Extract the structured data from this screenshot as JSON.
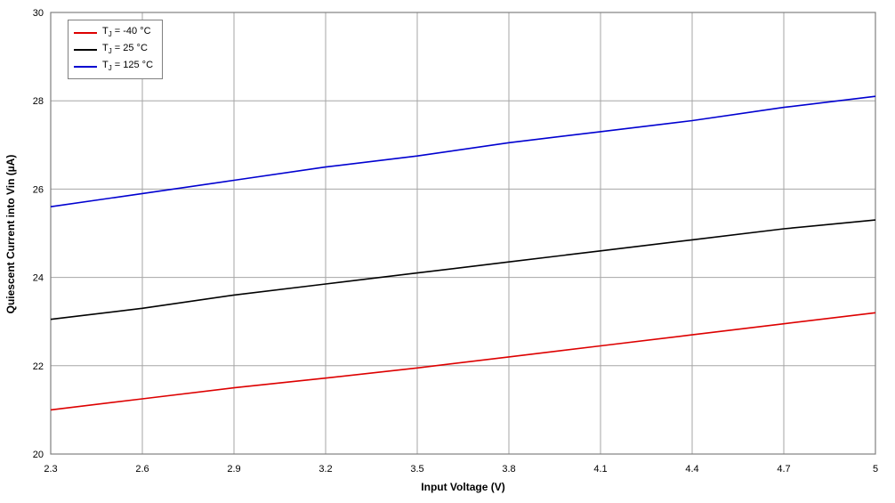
{
  "chart_data": {
    "type": "line",
    "title": "",
    "xlabel": "Input Voltage (V)",
    "ylabel": "Quiescent Current into Vin (µA)",
    "xlim": [
      2.3,
      5
    ],
    "ylim": [
      20,
      30
    ],
    "grid": true,
    "legend_position": "top-left",
    "grid_color": "#a6a6a6",
    "border_color": "#808080",
    "x_ticks": [
      2.3,
      2.6,
      2.9,
      3.2,
      3.5,
      3.8,
      4.1,
      4.4,
      4.7,
      5
    ],
    "x_tick_labels": [
      "2.3",
      "2.6",
      "2.9",
      "3.2",
      "3.5",
      "3.8",
      "4.1",
      "4.4",
      "4.7",
      "5"
    ],
    "y_ticks": [
      20,
      22,
      24,
      26,
      28,
      30
    ],
    "y_tick_labels": [
      "20",
      "22",
      "24",
      "26",
      "28",
      "30"
    ],
    "x": [
      2.3,
      2.6,
      2.9,
      3.2,
      3.5,
      3.8,
      4.1,
      4.4,
      4.7,
      5.0
    ],
    "series": [
      {
        "name": "TJ = -40 °C",
        "label_prefix": "T",
        "label_sub": "J",
        "label_rest": " = -40 °C",
        "color": "#dd0000",
        "values": [
          21.0,
          21.25,
          21.5,
          21.72,
          21.95,
          22.2,
          22.45,
          22.7,
          22.95,
          23.2
        ]
      },
      {
        "name": "TJ = 25 °C",
        "label_prefix": "T",
        "label_sub": "J",
        "label_rest": " = 25 °C",
        "color": "#000000",
        "values": [
          23.05,
          23.3,
          23.6,
          23.85,
          24.1,
          24.35,
          24.6,
          24.85,
          25.1,
          25.3
        ]
      },
      {
        "name": "TJ = 125 °C",
        "label_prefix": "T",
        "label_sub": "J",
        "label_rest": " = 125 °C",
        "color": "#0000d0",
        "values": [
          25.6,
          25.9,
          26.2,
          26.5,
          26.75,
          27.05,
          27.3,
          27.55,
          27.85,
          28.1
        ]
      }
    ]
  }
}
